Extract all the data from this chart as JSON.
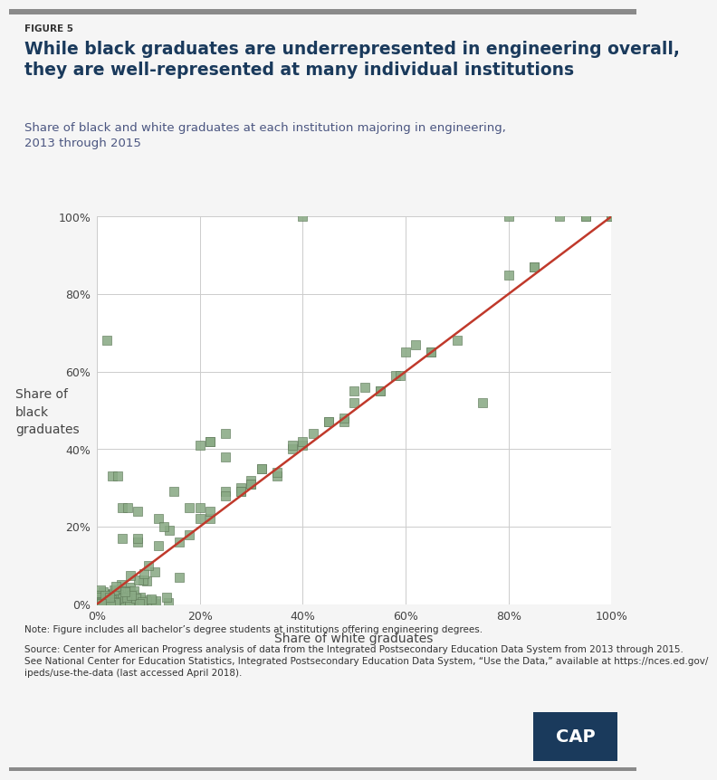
{
  "figure_label": "FIGURE 5",
  "title": "While black graduates are underrepresented in engineering overall,\nthey are well-represented at many individual institutions",
  "subtitle": "Share of black and white graduates at each institution majoring in engineering,\n2013 through 2015",
  "xlabel": "Share of white graduates",
  "ylabel": "Share of\nblack\ngraduates",
  "note": "Note: Figure includes all bachelor’s degree students at institutions offering engineering degrees.",
  "source_line1": "Source: Center for American Progress analysis of data from the Integrated Postsecondary Education Data System from 2013 through 2015.",
  "source_line2": "See National Center for Education Statistics, Integrated Postsecondary Education Data System, “Use the Data,” available at https://nces.ed.gov/",
  "source_line3": "ipeds/use-the-data (last accessed April 2018).",
  "title_color": "#1a3a5c",
  "subtitle_color": "#4a5580",
  "marker_color": "#8aaa85",
  "marker_edge_color": "#607a5a",
  "line_color": "#c0392b",
  "bg_color": "#f5f5f5",
  "grid_color": "#cccccc",
  "cap_bg": "#1a3a5c",
  "sparse_x": [
    3,
    5,
    8,
    12,
    14,
    16,
    18,
    20,
    22,
    25,
    28,
    30,
    32,
    35,
    38,
    40,
    42,
    45,
    48,
    50,
    52,
    55,
    58,
    60,
    62,
    65,
    70,
    75,
    80,
    85,
    90,
    95,
    100,
    40,
    55,
    59,
    65,
    80,
    85,
    95,
    100,
    5,
    8,
    12,
    15,
    18,
    22,
    25,
    2,
    4,
    6,
    8,
    10,
    13,
    16,
    20,
    22,
    25,
    28,
    30
  ],
  "sparse_y": [
    33,
    25,
    16,
    15,
    19,
    16,
    18,
    25,
    22,
    29,
    30,
    32,
    35,
    33,
    40,
    41,
    44,
    47,
    47,
    55,
    56,
    55,
    59,
    65,
    67,
    65,
    68,
    52,
    85,
    87,
    100,
    100,
    100,
    100,
    55,
    59,
    65,
    100,
    87,
    100,
    100,
    17,
    17,
    22,
    29,
    25,
    42,
    38,
    68,
    33,
    25,
    24,
    10,
    20,
    7,
    41,
    42,
    44,
    29,
    31
  ]
}
